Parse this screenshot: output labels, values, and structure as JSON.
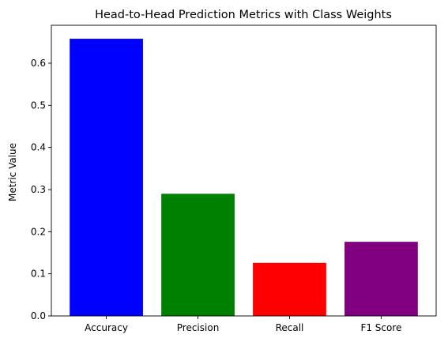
{
  "chart_data": {
    "type": "bar",
    "title": "Head-to-Head Prediction Metrics with Class Weights",
    "xlabel": "",
    "ylabel": "Metric Value",
    "categories": [
      "Accuracy",
      "Precision",
      "Recall",
      "F1 Score"
    ],
    "values": [
      0.658,
      0.29,
      0.126,
      0.176
    ],
    "colors": [
      "#0000ff",
      "#008000",
      "#ff0000",
      "#800080"
    ],
    "ylim": [
      0,
      0.69
    ],
    "yticks": [
      0.0,
      0.1,
      0.2,
      0.3,
      0.4,
      0.5,
      0.6
    ],
    "ytick_labels": [
      "0.0",
      "0.1",
      "0.2",
      "0.3",
      "0.4",
      "0.5",
      "0.6"
    ],
    "grid": false,
    "legend": "none"
  }
}
